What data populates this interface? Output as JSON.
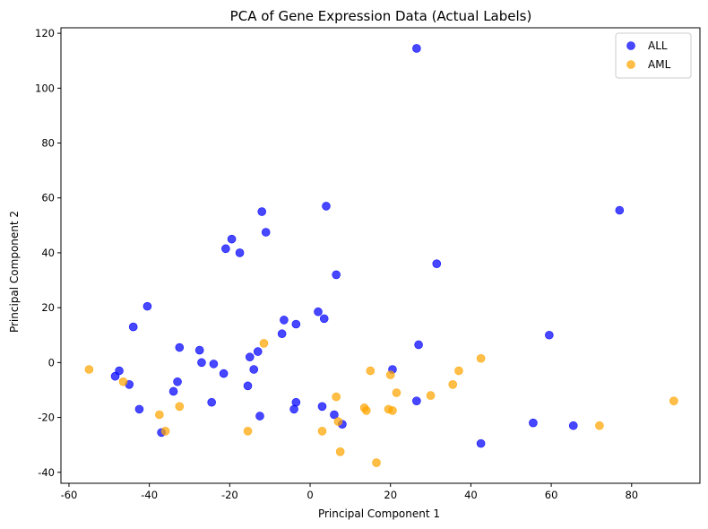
{
  "chart_data": {
    "type": "scatter",
    "title": "PCA of Gene Expression Data (Actual Labels)",
    "xlabel": "Principal Component 1",
    "ylabel": "Principal Component 2",
    "xlim": [
      -62,
      97
    ],
    "ylim": [
      -44,
      122
    ],
    "xticks": [
      -60,
      -40,
      -20,
      0,
      20,
      40,
      60,
      80
    ],
    "yticks": [
      -40,
      -20,
      0,
      20,
      40,
      60,
      80,
      100,
      120
    ],
    "grid": false,
    "legend_position": "top-right",
    "series": [
      {
        "name": "ALL",
        "color": "#0000ff",
        "points": [
          [
            26.5,
            114.5
          ],
          [
            77,
            55.5
          ],
          [
            4,
            57
          ],
          [
            -12,
            55
          ],
          [
            -19.5,
            45
          ],
          [
            -21,
            41.5
          ],
          [
            -17.5,
            40
          ],
          [
            -11,
            47.5
          ],
          [
            6.5,
            32
          ],
          [
            31.5,
            36
          ],
          [
            -40.5,
            20.5
          ],
          [
            -44,
            13
          ],
          [
            2,
            18.5
          ],
          [
            -6.5,
            15.5
          ],
          [
            3.5,
            16
          ],
          [
            -3.5,
            14
          ],
          [
            -7,
            10.5
          ],
          [
            59.5,
            10
          ],
          [
            27,
            6.5
          ],
          [
            -32.5,
            5.5
          ],
          [
            -27.5,
            4.5
          ],
          [
            -13,
            4
          ],
          [
            -15,
            2
          ],
          [
            -27,
            0
          ],
          [
            -24,
            -0.5
          ],
          [
            -21.5,
            -4
          ],
          [
            -14,
            -2.5
          ],
          [
            20.5,
            -2.5
          ],
          [
            -48.5,
            -5
          ],
          [
            -47.5,
            -3
          ],
          [
            -45,
            -8
          ],
          [
            -33,
            -7
          ],
          [
            -34,
            -10.5
          ],
          [
            -15.5,
            -8.5
          ],
          [
            26.5,
            -14
          ],
          [
            -24.5,
            -14.5
          ],
          [
            -3.5,
            -14.5
          ],
          [
            -42.5,
            -17
          ],
          [
            -4,
            -17
          ],
          [
            -12.5,
            -19.5
          ],
          [
            3,
            -16
          ],
          [
            6,
            -19
          ],
          [
            8,
            -22.5
          ],
          [
            55.5,
            -22
          ],
          [
            65.5,
            -23
          ],
          [
            -37,
            -25.5
          ],
          [
            42.5,
            -29.5
          ]
        ]
      },
      {
        "name": "AML",
        "color": "#ffa500",
        "points": [
          [
            -55,
            -2.5
          ],
          [
            -46.5,
            -7
          ],
          [
            -37.5,
            -19
          ],
          [
            -36,
            -25
          ],
          [
            -32.5,
            -16
          ],
          [
            -15.5,
            -25
          ],
          [
            -11.5,
            7
          ],
          [
            42.5,
            1.5
          ],
          [
            15,
            -3
          ],
          [
            20,
            -4.5
          ],
          [
            37,
            -3
          ],
          [
            35.5,
            -8
          ],
          [
            21.5,
            -11
          ],
          [
            30,
            -12
          ],
          [
            6.5,
            -12.5
          ],
          [
            13.5,
            -16.5
          ],
          [
            14,
            -17.5
          ],
          [
            19.5,
            -17
          ],
          [
            20.5,
            -17.5
          ],
          [
            7,
            -21.5
          ],
          [
            3,
            -25
          ],
          [
            7.5,
            -32.5
          ],
          [
            16.5,
            -36.5
          ],
          [
            72,
            -23
          ],
          [
            90.5,
            -14
          ]
        ]
      }
    ]
  },
  "colors": {
    "all_marker": "#0000ff",
    "aml_marker": "#ffa500",
    "axis": "#000000",
    "legend_border": "#cccccc"
  }
}
